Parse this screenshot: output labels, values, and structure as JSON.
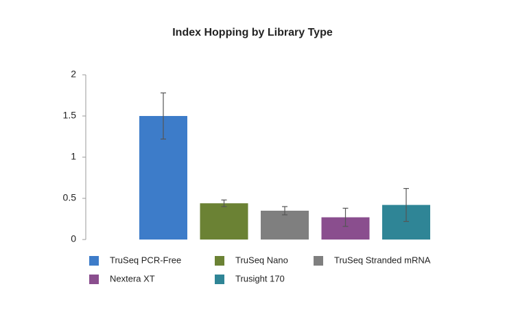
{
  "chart_data": {
    "type": "bar",
    "title": "Index Hopping by Library Type",
    "ylim": [
      0,
      2
    ],
    "yticks": [
      0,
      0.5,
      1,
      1.5,
      2
    ],
    "series": [
      {
        "name": "TruSeq PCR-Free",
        "color": "#3d7cc9",
        "values": [
          1.5
        ],
        "errors": [
          0.28
        ]
      },
      {
        "name": "TruSeq Nano",
        "color": "#6b8234",
        "values": [
          0.44
        ],
        "errors": [
          0.04
        ]
      },
      {
        "name": "TruSeq Stranded mRNA",
        "color": "#7f7f7f",
        "values": [
          0.35
        ],
        "errors": [
          0.05
        ]
      },
      {
        "name": "Nextera XT",
        "color": "#8a4e8e",
        "values": [
          0.27
        ],
        "errors": [
          0.11
        ]
      },
      {
        "name": "Trusight 170",
        "color": "#2f8596",
        "values": [
          0.42
        ],
        "errors": [
          0.2
        ]
      }
    ]
  }
}
